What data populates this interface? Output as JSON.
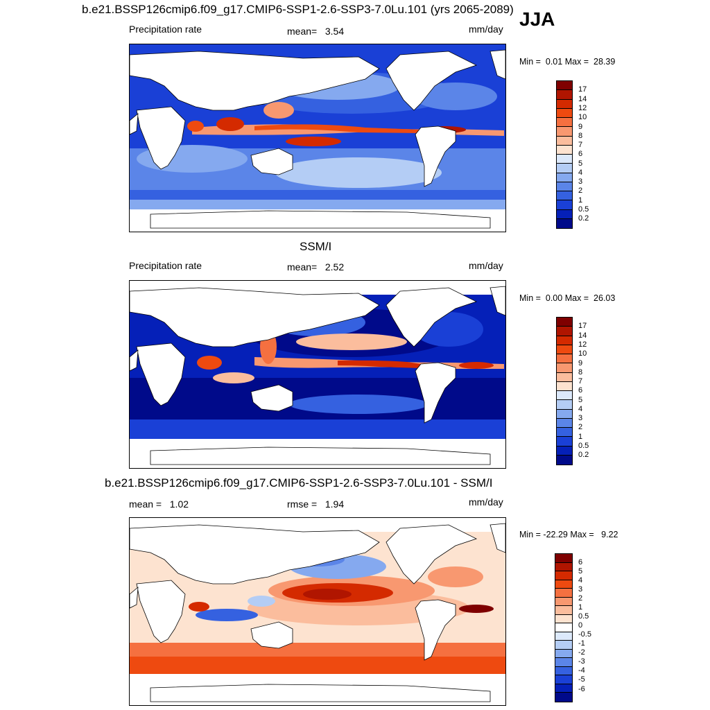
{
  "season": "JJA",
  "panels": [
    {
      "title": "b.e21.BSSP126cmip6.f09_g17.CMIP6-SSP1-2.6-SSP3-7.0Lu.101 (yrs 2065-2089)",
      "left_label": "Precipitation rate",
      "center_label": "mean=",
      "center_value": "3.54",
      "units": "mm/day",
      "min_label": "Min =",
      "min_value": "0.01",
      "max_label": "Max =",
      "max_value": "28.39",
      "colorbar_labels": [
        "17",
        "14",
        "12",
        "10",
        "9",
        "8",
        "7",
        "6",
        "5",
        "4",
        "3",
        "2",
        "1",
        "0.5",
        "0.2"
      ]
    },
    {
      "title": "SSM/I",
      "left_label": "Precipitation rate",
      "center_label": "mean=",
      "center_value": "2.52",
      "units": "mm/day",
      "min_label": "Min =",
      "min_value": "0.00",
      "max_label": "Max =",
      "max_value": "26.03",
      "colorbar_labels": [
        "17",
        "14",
        "12",
        "10",
        "9",
        "8",
        "7",
        "6",
        "5",
        "4",
        "3",
        "2",
        "1",
        "0.5",
        "0.2"
      ]
    },
    {
      "title": "b.e21.BSSP126cmip6.f09_g17.CMIP6-SSP1-2.6-SSP3-7.0Lu.101 - SSM/I",
      "left_label": "mean =",
      "left_value": "1.02",
      "center_label": "rmse =",
      "center_value": "1.94",
      "units": "mm/day",
      "min_label": "Min =",
      "min_value": "-22.29",
      "max_label": "Max =",
      "max_value": "9.22",
      "colorbar_labels": [
        "6",
        "5",
        "4",
        "3",
        "2",
        "1",
        "0.5",
        "0",
        "-0.5",
        "-1",
        "-2",
        "-3",
        "-4",
        "-5",
        "-6"
      ]
    }
  ],
  "colors": {
    "precip_scale": [
      "#7f0000",
      "#b01500",
      "#d42a00",
      "#ee4a10",
      "#f57040",
      "#f89870",
      "#fbbd9d",
      "#fde3d0",
      "#dce9fb",
      "#b4cdf5",
      "#85a9ef",
      "#5b85e8",
      "#3561e0",
      "#1a40d6",
      "#0520b8",
      "#000a8a"
    ],
    "diff_scale": [
      "#7f0000",
      "#b01500",
      "#d42a00",
      "#ee4a10",
      "#f57040",
      "#f89870",
      "#fbbd9d",
      "#fde3d0",
      "#ffffff",
      "#dce9fb",
      "#b4cdf5",
      "#85a9ef",
      "#5b85e8",
      "#3561e0",
      "#1a40d6",
      "#0520b8",
      "#000a8a"
    ]
  }
}
